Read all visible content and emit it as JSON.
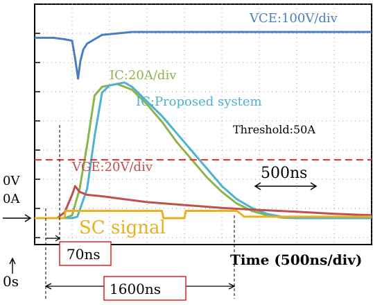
{
  "chart_data": {
    "type": "line",
    "x_unit": "ns",
    "x_range": [
      -500,
      4000
    ],
    "time_axis_label": "Time (500ns/div)",
    "grid": "oscilloscope 8 major divisions, dotted minor ticks",
    "series": [
      {
        "name": "VCE:100V/div",
        "color": "#4a7ec4",
        "points": [
          [
            -500,
            -0.2
          ],
          [
            -250,
            -0.2
          ],
          [
            -100,
            -0.25
          ],
          [
            0,
            -0.3
          ],
          [
            40,
            -0.9
          ],
          [
            80,
            -1.6
          ],
          [
            110,
            -1.0
          ],
          [
            150,
            -0.6
          ],
          [
            200,
            -0.4
          ],
          [
            300,
            -0.25
          ],
          [
            400,
            -0.1
          ],
          [
            600,
            -0.05
          ],
          [
            800,
            0.0
          ],
          [
            1200,
            0.0
          ],
          [
            2000,
            0.0
          ],
          [
            3000,
            0.0
          ],
          [
            4000,
            0.0
          ]
        ]
      },
      {
        "name": "IC:20A/div",
        "color": "#8bb54a",
        "points": [
          [
            -500,
            0.0
          ],
          [
            -100,
            0.0
          ],
          [
            0,
            0.1
          ],
          [
            100,
            1.0
          ],
          [
            200,
            2.5
          ],
          [
            300,
            4.2
          ],
          [
            400,
            4.5
          ],
          [
            600,
            4.6
          ],
          [
            800,
            4.4
          ],
          [
            1000,
            3.9
          ],
          [
            1200,
            3.3
          ],
          [
            1400,
            2.6
          ],
          [
            1600,
            2.0
          ],
          [
            1800,
            1.4
          ],
          [
            2000,
            0.9
          ],
          [
            2200,
            0.5
          ],
          [
            2400,
            0.25
          ],
          [
            2600,
            0.1
          ],
          [
            2800,
            0.02
          ],
          [
            3000,
            0.0
          ],
          [
            4000,
            0.0
          ]
        ]
      },
      {
        "name": "IC:Proposed system",
        "color": "#4fb0d0",
        "points": [
          [
            -500,
            0.0
          ],
          [
            -100,
            0.0
          ],
          [
            0,
            0.0
          ],
          [
            70,
            0.05
          ],
          [
            200,
            1.0
          ],
          [
            300,
            2.8
          ],
          [
            400,
            4.3
          ],
          [
            500,
            4.55
          ],
          [
            600,
            4.6
          ],
          [
            700,
            4.65
          ],
          [
            800,
            4.5
          ],
          [
            1000,
            4.0
          ],
          [
            1200,
            3.5
          ],
          [
            1400,
            2.9
          ],
          [
            1600,
            2.3
          ],
          [
            1800,
            1.7
          ],
          [
            2000,
            1.1
          ],
          [
            2200,
            0.65
          ],
          [
            2400,
            0.35
          ],
          [
            2600,
            0.15
          ],
          [
            2800,
            0.05
          ],
          [
            3000,
            0.0
          ],
          [
            4000,
            0.0
          ]
        ]
      },
      {
        "name": "VGE:20V/div",
        "color": "#c0504d",
        "points": [
          [
            -500,
            0.0
          ],
          [
            -200,
            0.0
          ],
          [
            -100,
            0.2
          ],
          [
            0,
            0.8
          ],
          [
            40,
            1.1
          ],
          [
            100,
            0.9
          ],
          [
            200,
            0.8
          ],
          [
            400,
            0.75
          ],
          [
            700,
            0.65
          ],
          [
            1000,
            0.55
          ],
          [
            1500,
            0.45
          ],
          [
            2000,
            0.35
          ],
          [
            2500,
            0.28
          ],
          [
            3000,
            0.22
          ],
          [
            3500,
            0.15
          ],
          [
            4000,
            0.1
          ]
        ]
      },
      {
        "name": "SC signal",
        "color": "#e8b020",
        "points": [
          [
            -500,
            0.0
          ],
          [
            -100,
            0.0
          ],
          [
            -90,
            0.25
          ],
          [
            1200,
            0.25
          ],
          [
            1220,
            0.0
          ],
          [
            1500,
            0.0
          ],
          [
            1520,
            0.25
          ],
          [
            2200,
            0.25
          ],
          [
            2300,
            0.05
          ],
          [
            4000,
            0.05
          ]
        ]
      }
    ],
    "threshold": {
      "label": "Threshold:50A",
      "value_div": 2.5,
      "color": "#ff2a2a"
    },
    "annotations": {
      "scale_500": "500ns",
      "delay_70": "70ns",
      "delay_1600": "1600ns",
      "zero_v": "0V",
      "zero_a": "0A",
      "zero_s": "0s"
    }
  }
}
